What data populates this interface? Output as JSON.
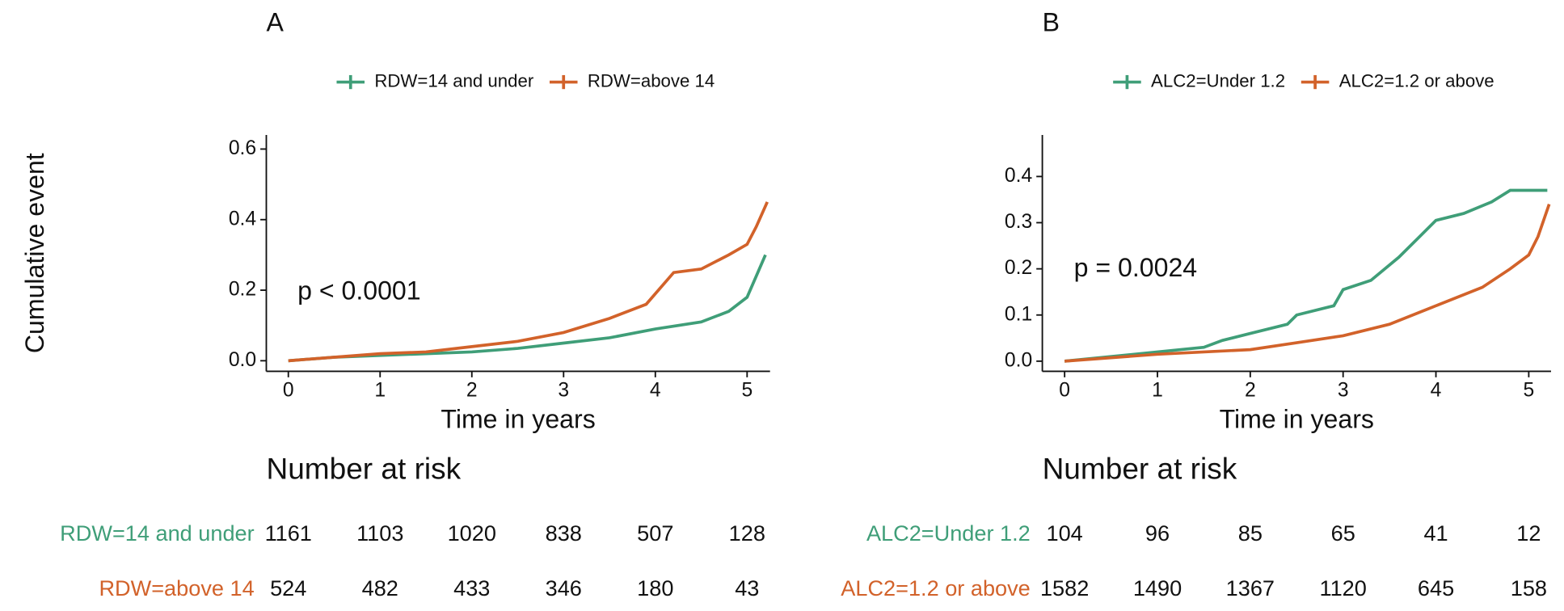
{
  "chart_data": [
    {
      "type": "line",
      "panel_label": "A",
      "y_label": "Cumulative event",
      "x_label": "Time in years",
      "annotation": "p < 0.0001",
      "xlim": [
        -0.24,
        5.25
      ],
      "ylim": [
        -0.03,
        0.64
      ],
      "xticks": [
        0,
        1,
        2,
        3,
        4,
        5
      ],
      "yticks": [
        {
          "value": 0,
          "label": "0.0"
        },
        {
          "value": 0.2,
          "label": "0.2"
        },
        {
          "value": 0.4,
          "label": "0.4"
        },
        {
          "value": 0.6,
          "label": "0.6"
        }
      ],
      "series": [
        {
          "name": "RDW=14 and under",
          "color": "#3f9e78",
          "x": [
            0,
            0.5,
            1,
            1.5,
            2,
            2.5,
            3,
            3.5,
            4,
            4.5,
            4.8,
            5,
            5.1,
            5.2
          ],
          "values": [
            0,
            0.01,
            0.015,
            0.02,
            0.025,
            0.035,
            0.05,
            0.065,
            0.09,
            0.11,
            0.14,
            0.18,
            0.24,
            0.3
          ]
        },
        {
          "name": "RDW=above 14",
          "color": "#d2622a",
          "x": [
            0,
            0.5,
            1,
            1.5,
            2,
            2.5,
            3,
            3.5,
            3.9,
            4.2,
            4.5,
            4.8,
            5,
            5.1,
            5.22
          ],
          "values": [
            0,
            0.01,
            0.02,
            0.025,
            0.04,
            0.055,
            0.08,
            0.12,
            0.16,
            0.25,
            0.26,
            0.3,
            0.33,
            0.38,
            0.45
          ]
        }
      ],
      "risk_table": {
        "title": "Number at risk",
        "rows": [
          {
            "name": "RDW=14 and under",
            "color": "#3f9e78",
            "values": [
              1161,
              1103,
              1020,
              838,
              507,
              128
            ]
          },
          {
            "name": "RDW=above 14",
            "color": "#d2622a",
            "values": [
              524,
              482,
              433,
              346,
              180,
              43
            ]
          }
        ]
      }
    },
    {
      "type": "line",
      "panel_label": "B",
      "x_label": "Time in years",
      "annotation": "p = 0.0024",
      "xlim": [
        -0.24,
        5.24
      ],
      "ylim": [
        -0.022,
        0.49
      ],
      "xticks": [
        0,
        1,
        2,
        3,
        4,
        5
      ],
      "yticks": [
        {
          "value": 0,
          "label": "0.0"
        },
        {
          "value": 0.1,
          "label": "0.1"
        },
        {
          "value": 0.2,
          "label": "0.2"
        },
        {
          "value": 0.3,
          "label": "0.3"
        },
        {
          "value": 0.4,
          "label": "0.4"
        }
      ],
      "series": [
        {
          "name": "ALC2=Under 1.2",
          "color": "#3f9e78",
          "x": [
            0,
            1,
            1.5,
            1.7,
            2,
            2.4,
            2.5,
            2.9,
            3,
            3.3,
            3.6,
            3.8,
            4,
            4.3,
            4.6,
            4.8,
            5.2
          ],
          "values": [
            0,
            0.02,
            0.03,
            0.045,
            0.06,
            0.08,
            0.1,
            0.12,
            0.155,
            0.175,
            0.225,
            0.265,
            0.305,
            0.32,
            0.345,
            0.37,
            0.37
          ]
        },
        {
          "name": "ALC2=1.2 or above",
          "color": "#d2622a",
          "x": [
            0,
            1,
            2,
            2.5,
            3,
            3.5,
            4,
            4.5,
            4.8,
            5,
            5.1,
            5.22
          ],
          "values": [
            0,
            0.015,
            0.025,
            0.04,
            0.055,
            0.08,
            0.12,
            0.16,
            0.2,
            0.23,
            0.27,
            0.34
          ]
        }
      ],
      "risk_table": {
        "title": "Number at risk",
        "rows": [
          {
            "name": "ALC2=Under 1.2",
            "color": "#3f9e78",
            "values": [
              104,
              96,
              85,
              65,
              41,
              12
            ]
          },
          {
            "name": "ALC2=1.2 or above",
            "color": "#d2622a",
            "values": [
              1582,
              1490,
              1367,
              1120,
              645,
              158
            ]
          }
        ]
      }
    }
  ]
}
